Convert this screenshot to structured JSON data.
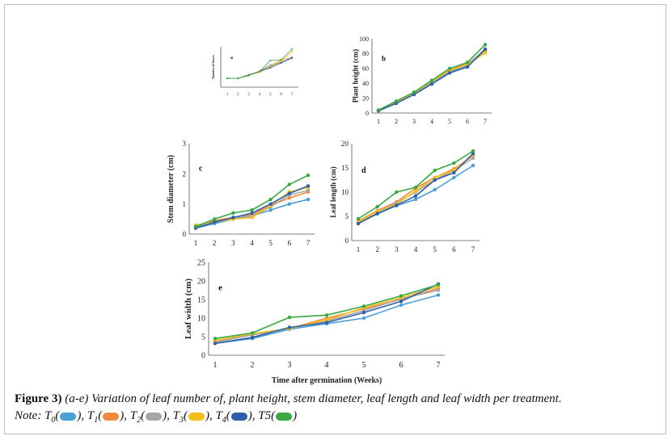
{
  "figure": {
    "caption_label": "Figure 3)",
    "caption_text": "(a-e) Variation of leaf number of, plant height, stem diameter, leaf length and leaf width per treatment.",
    "note_prefix": "Note:",
    "legend": [
      {
        "name": "T",
        "sub": "0",
        "color": "#4a9fd5"
      },
      {
        "name": "T",
        "sub": "1",
        "color": "#f08a3c"
      },
      {
        "name": "T",
        "sub": "2",
        "color": "#a6a6a6"
      },
      {
        "name": "T",
        "sub": "3",
        "color": "#f2be1a"
      },
      {
        "name": "T",
        "sub": "4",
        "color": "#2f5faa"
      },
      {
        "name": "T5",
        "sub": "",
        "color": "#38a843"
      }
    ]
  },
  "chart_data": [
    {
      "id": "a",
      "panel_label": "a",
      "type": "line",
      "ylabel": "Number of leaves",
      "xlabel": "",
      "x": [
        1,
        2,
        3,
        4,
        5,
        6,
        7
      ],
      "xticks": [
        "1",
        "2",
        "3",
        "4",
        "5",
        "6",
        "7"
      ],
      "ylim": [
        0,
        100
      ],
      "yticks": [],
      "series": [
        {
          "name": "T0",
          "values": [
            22,
            22,
            28,
            40,
            55,
            60,
            75
          ]
        },
        {
          "name": "T1",
          "values": [
            22,
            22,
            30,
            40,
            52,
            68,
            73
          ]
        },
        {
          "name": "T2",
          "values": [
            22,
            22,
            29,
            37,
            50,
            63,
            72
          ]
        },
        {
          "name": "T3",
          "values": [
            22,
            22,
            29,
            38,
            51,
            65,
            88
          ]
        },
        {
          "name": "T4",
          "values": [
            22,
            22,
            31,
            39,
            48,
            60,
            72
          ]
        },
        {
          "name": "T5",
          "values": [
            22,
            22,
            30,
            39,
            66,
            68,
            94
          ]
        }
      ]
    },
    {
      "id": "b",
      "panel_label": "b",
      "type": "line",
      "ylabel": "Plant height (cm)",
      "xlabel": "",
      "x": [
        1,
        2,
        3,
        4,
        5,
        6,
        7
      ],
      "xticks": [
        "1",
        "2",
        "3",
        "4",
        "5",
        "6",
        "7"
      ],
      "ylim": [
        0,
        100
      ],
      "yticks": [
        "0",
        "20",
        "40",
        "60",
        "80",
        "100"
      ],
      "series": [
        {
          "name": "T0",
          "values": [
            3,
            14,
            26,
            40,
            56,
            63,
            85
          ]
        },
        {
          "name": "T1",
          "values": [
            3,
            15,
            27,
            42,
            58,
            66,
            84
          ]
        },
        {
          "name": "T2",
          "values": [
            3,
            14,
            26,
            41,
            57,
            65,
            86
          ]
        },
        {
          "name": "T3",
          "values": [
            3,
            15,
            27,
            43,
            57,
            65,
            81
          ]
        },
        {
          "name": "T4",
          "values": [
            3,
            13,
            25,
            39,
            54,
            62,
            86
          ]
        },
        {
          "name": "T5",
          "values": [
            4,
            16,
            28,
            44,
            60,
            68,
            92
          ]
        }
      ]
    },
    {
      "id": "c",
      "panel_label": "c",
      "type": "line",
      "ylabel": "Stem diameter (cm)",
      "xlabel": "",
      "x": [
        1,
        2,
        3,
        4,
        5,
        6,
        7
      ],
      "xticks": [
        "1",
        "2",
        "3",
        "4",
        "5",
        "6",
        "7"
      ],
      "ylim": [
        0,
        3
      ],
      "yticks": [
        "0",
        "1",
        "2",
        "3"
      ],
      "series": [
        {
          "name": "T0",
          "values": [
            0.2,
            0.35,
            0.5,
            0.6,
            0.8,
            1.0,
            1.15
          ]
        },
        {
          "name": "T1",
          "values": [
            0.25,
            0.45,
            0.55,
            0.65,
            0.95,
            1.2,
            1.4
          ]
        },
        {
          "name": "T2",
          "values": [
            0.25,
            0.4,
            0.55,
            0.6,
            0.9,
            1.3,
            1.45
          ]
        },
        {
          "name": "T3",
          "values": [
            0.3,
            0.4,
            0.5,
            0.55,
            0.95,
            1.4,
            1.55
          ]
        },
        {
          "name": "T4",
          "values": [
            0.2,
            0.4,
            0.55,
            0.7,
            1.0,
            1.35,
            1.6
          ]
        },
        {
          "name": "T5",
          "values": [
            0.25,
            0.5,
            0.7,
            0.8,
            1.15,
            1.65,
            1.95
          ]
        }
      ]
    },
    {
      "id": "d",
      "panel_label": "d",
      "type": "line",
      "ylabel": "Leaf length (cm)",
      "xlabel": "",
      "x": [
        1,
        2,
        3,
        4,
        5,
        6,
        7
      ],
      "xticks": [
        "1",
        "2",
        "3",
        "4",
        "5",
        "6",
        "7"
      ],
      "ylim": [
        0,
        20
      ],
      "yticks": [
        "0",
        "5",
        "10",
        "15",
        "20"
      ],
      "series": [
        {
          "name": "T0",
          "values": [
            3.6,
            5.5,
            7.2,
            8.5,
            10.5,
            13.0,
            15.5
          ]
        },
        {
          "name": "T1",
          "values": [
            4.0,
            6.2,
            8.0,
            10.8,
            13.0,
            14.8,
            17.5
          ]
        },
        {
          "name": "T2",
          "values": [
            3.8,
            6.0,
            7.8,
            10.0,
            12.5,
            14.5,
            17.0
          ]
        },
        {
          "name": "T3",
          "values": [
            3.8,
            6.0,
            7.5,
            10.2,
            13.0,
            14.5,
            17.8
          ]
        },
        {
          "name": "T4",
          "values": [
            3.5,
            5.6,
            7.3,
            9.2,
            12.5,
            14.0,
            18.0
          ]
        },
        {
          "name": "T5",
          "values": [
            4.5,
            7.0,
            10.0,
            11.0,
            14.5,
            16.0,
            18.5
          ]
        }
      ]
    },
    {
      "id": "e",
      "panel_label": "e",
      "type": "line",
      "ylabel": "Leaf width (cm)",
      "xlabel": "Time after germination (Weeks)",
      "x": [
        1,
        2,
        3,
        4,
        5,
        6,
        7
      ],
      "xticks": [
        "1",
        "2",
        "3",
        "4",
        "5",
        "6",
        "7"
      ],
      "ylim": [
        0,
        25
      ],
      "yticks": [
        "0",
        "5",
        "10",
        "15",
        "20",
        "25"
      ],
      "series": [
        {
          "name": "T0",
          "values": [
            3.2,
            4.5,
            7.0,
            8.5,
            10.0,
            13.5,
            16.2
          ]
        },
        {
          "name": "T1",
          "values": [
            3.8,
            5.5,
            7.2,
            10.0,
            12.5,
            15.0,
            18.0
          ]
        },
        {
          "name": "T2",
          "values": [
            3.5,
            5.5,
            7.2,
            9.2,
            12.0,
            15.2,
            17.5
          ]
        },
        {
          "name": "T3",
          "values": [
            4.0,
            5.8,
            7.2,
            9.5,
            12.8,
            15.5,
            18.5
          ]
        },
        {
          "name": "T4",
          "values": [
            3.2,
            4.8,
            7.5,
            8.8,
            11.5,
            14.5,
            19.2
          ]
        },
        {
          "name": "T5",
          "values": [
            4.5,
            6.0,
            10.2,
            10.8,
            13.2,
            16.0,
            19.0
          ]
        }
      ]
    }
  ]
}
